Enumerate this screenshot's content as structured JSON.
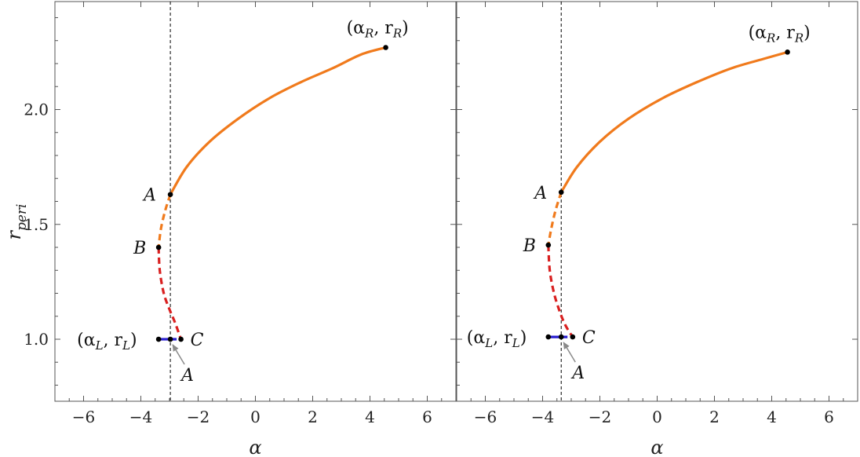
{
  "colors": {
    "orange": "#f07a1c",
    "red": "#d92020",
    "blue": "#2a1fd0",
    "black": "#000000",
    "arrow": "#8a8a8a"
  },
  "chart_data": [
    {
      "type": "line",
      "xlabel": "α",
      "ylabel": "r",
      "ylabel_sub": "peri",
      "xlim": [
        -7,
        7
      ],
      "ylim": [
        0.73,
        2.47
      ],
      "xticks": [
        "−6",
        "−4",
        "−2",
        "0",
        "2",
        "4",
        "6"
      ],
      "yticks": [
        "1.0",
        "1.5",
        "2.0"
      ],
      "vline_x": -2.97,
      "series": [
        {
          "style": "solid",
          "color": "orange",
          "x": [
            -2.97,
            -2.4,
            -1.6,
            -0.6,
            0.5,
            1.6,
            2.7,
            3.7,
            4.55
          ],
          "y": [
            1.63,
            1.75,
            1.86,
            1.96,
            2.05,
            2.12,
            2.18,
            2.24,
            2.27
          ]
        },
        {
          "style": "dashed",
          "color": "orange",
          "x": [
            -2.97,
            -3.15,
            -3.3,
            -3.38
          ],
          "y": [
            1.63,
            1.56,
            1.48,
            1.4
          ]
        },
        {
          "style": "dashed",
          "color": "red",
          "x": [
            -3.38,
            -3.34,
            -3.2,
            -3.0,
            -2.8,
            -2.6
          ],
          "y": [
            1.4,
            1.3,
            1.2,
            1.13,
            1.07,
            1.0
          ]
        },
        {
          "style": "solid",
          "color": "blue",
          "x": [
            -3.38,
            -2.97
          ],
          "y": [
            1.0,
            1.0
          ]
        },
        {
          "style": "dashed",
          "color": "blue",
          "x": [
            -2.97,
            -2.6
          ],
          "y": [
            1.0,
            1.0
          ]
        }
      ],
      "points": [
        {
          "x": 4.55,
          "y": 2.27,
          "label": "(α",
          "sub": "R",
          "mid": ", r",
          "sub2": "R",
          "end": ")",
          "dx": -50,
          "dy": -18
        },
        {
          "x": -2.97,
          "y": 1.63,
          "label": "A",
          "dx": -34,
          "dy": 8
        },
        {
          "x": -3.38,
          "y": 1.4,
          "label": "B",
          "dx": -32,
          "dy": 8
        },
        {
          "x": -2.6,
          "y": 1.0,
          "label": "C",
          "dx": 12,
          "dy": 8
        },
        {
          "x": -3.38,
          "y": 1.0,
          "label": "(α",
          "sub": "L",
          "mid": ", r",
          "sub2": "L",
          "end": ")",
          "dx": -104,
          "dy": 8
        },
        {
          "x": -2.97,
          "y": 1.0
        }
      ],
      "arrow_label": "A",
      "arrow_to": {
        "x": -2.97,
        "y": 1.0
      }
    },
    {
      "type": "line",
      "xlabel": "α",
      "xlim": [
        -7,
        7
      ],
      "ylim": [
        0.73,
        2.47
      ],
      "xticks": [
        "−6",
        "−4",
        "−2",
        "0",
        "2",
        "4",
        "6"
      ],
      "vline_x": -3.35,
      "series": [
        {
          "style": "solid",
          "color": "orange",
          "x": [
            -3.35,
            -2.8,
            -2.0,
            -1.0,
            0.2,
            1.4,
            2.6,
            3.7,
            4.55
          ],
          "y": [
            1.64,
            1.75,
            1.86,
            1.96,
            2.05,
            2.12,
            2.18,
            2.22,
            2.25
          ]
        },
        {
          "style": "dashed",
          "color": "orange",
          "x": [
            -3.35,
            -3.55,
            -3.7,
            -3.8
          ],
          "y": [
            1.64,
            1.56,
            1.48,
            1.41
          ]
        },
        {
          "style": "dashed",
          "color": "red",
          "x": [
            -3.8,
            -3.75,
            -3.6,
            -3.4,
            -3.2,
            -2.95
          ],
          "y": [
            1.41,
            1.3,
            1.2,
            1.12,
            1.06,
            1.01
          ]
        },
        {
          "style": "solid",
          "color": "blue",
          "x": [
            -3.8,
            -3.35
          ],
          "y": [
            1.01,
            1.01
          ]
        },
        {
          "style": "dashed",
          "color": "blue",
          "x": [
            -3.35,
            -2.95
          ],
          "y": [
            1.01,
            1.01
          ]
        }
      ],
      "points": [
        {
          "x": 4.55,
          "y": 2.25,
          "label": "(α",
          "sub": "R",
          "mid": ", r",
          "sub2": "R",
          "end": ")",
          "dx": -50,
          "dy": -18
        },
        {
          "x": -3.35,
          "y": 1.64,
          "label": "A",
          "dx": -34,
          "dy": 8
        },
        {
          "x": -3.8,
          "y": 1.41,
          "label": "B",
          "dx": -32,
          "dy": 8
        },
        {
          "x": -2.95,
          "y": 1.01,
          "label": "C",
          "dx": 12,
          "dy": 8
        },
        {
          "x": -3.8,
          "y": 1.01,
          "label": "(α",
          "sub": "L",
          "mid": ", r",
          "sub2": "L",
          "end": ")",
          "dx": -104,
          "dy": 8
        },
        {
          "x": -3.35,
          "y": 1.01
        }
      ],
      "arrow_label": "A",
      "arrow_to": {
        "x": -3.35,
        "y": 1.01
      }
    }
  ]
}
